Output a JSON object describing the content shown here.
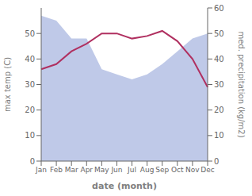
{
  "chart_data": {
    "type": "line",
    "categories": [
      "Jan",
      "Feb",
      "Mar",
      "Apr",
      "May",
      "Jun",
      "Jul",
      "Aug",
      "Sep",
      "Oct",
      "Nov",
      "Dec"
    ],
    "series": [
      {
        "type": "area",
        "color": "#bfc9e8",
        "values": [
          57,
          55,
          48,
          48,
          36,
          34,
          32,
          34,
          38,
          43,
          48,
          50
        ],
        "axis": "y2"
      },
      {
        "type": "line",
        "color": "#b03060",
        "values": [
          36,
          38,
          43,
          46,
          50,
          50,
          48,
          49,
          51,
          47,
          40,
          29
        ]
      }
    ],
    "xlabel": "date (month)",
    "ylabel": "max temp (C)",
    "y2label": "med. precipitation (kg/m2)",
    "ylim": [
      0,
      60
    ],
    "yticks": [
      0,
      10,
      20,
      30,
      40,
      50
    ],
    "y2lim": [
      0,
      60
    ],
    "y2ticks": [
      0,
      10,
      20,
      30,
      40,
      50,
      60
    ],
    "grid": false
  }
}
